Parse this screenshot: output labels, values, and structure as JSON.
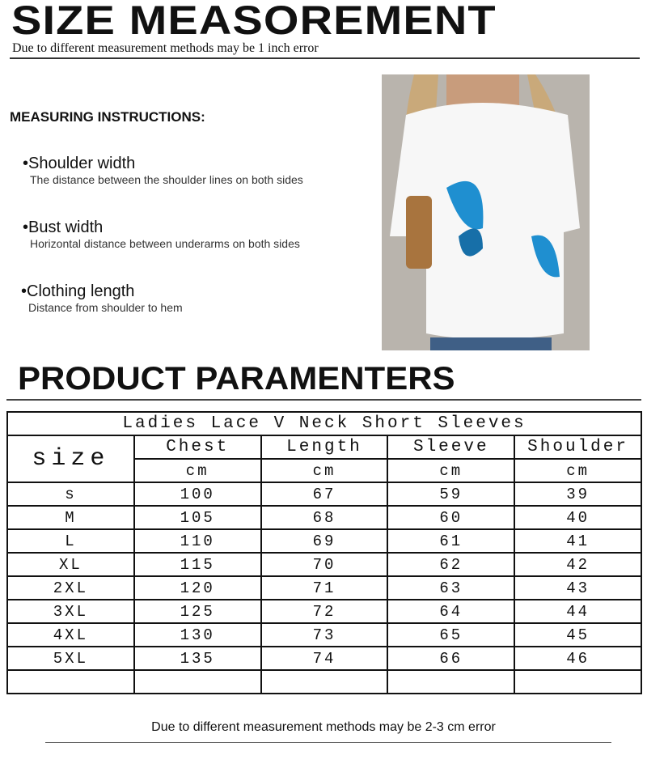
{
  "header": {
    "title": "SIZE  MEASOREMENT",
    "subtitle": "Due to different measurement methods may be 1 inch error"
  },
  "instructions": {
    "heading": "MEASURING INSTRUCTIONS:",
    "items": [
      {
        "label": "•Shoulder width",
        "desc": "The distance between the shoulder lines on both sides"
      },
      {
        "label": "•Bust width",
        "desc": "Horizontal distance between underarms on both sides"
      },
      {
        "label": "•Clothing length",
        "desc": "Distance from shoulder to hem"
      }
    ]
  },
  "product": {
    "heading": "PRODUCT PARAMENTERS",
    "colors": {
      "butterfly": "#1f8fd0",
      "shirt": "#f7f7f7",
      "background": "#b9b4ad"
    }
  },
  "table": {
    "caption": "Ladies Lace V Neck Short Sleeves",
    "size_header": "size",
    "columns": [
      "Chest",
      "Length",
      "Sleeve",
      "Shoulder"
    ],
    "unit": "cm",
    "rows": [
      [
        "s",
        "100",
        "67",
        "59",
        "39"
      ],
      [
        "M",
        "105",
        "68",
        "60",
        "40"
      ],
      [
        "L",
        "110",
        "69",
        "61",
        "41"
      ],
      [
        "XL",
        "115",
        "70",
        "62",
        "42"
      ],
      [
        "2XL",
        "120",
        "71",
        "63",
        "43"
      ],
      [
        "3XL",
        "125",
        "72",
        "64",
        "44"
      ],
      [
        "4XL",
        "130",
        "73",
        "65",
        "45"
      ],
      [
        "5XL",
        "135",
        "74",
        "66",
        "46"
      ],
      [
        "",
        "",
        "",
        "",
        ""
      ]
    ]
  },
  "footer": {
    "note": "Due to different measurement methods may be 2-3 cm error"
  }
}
